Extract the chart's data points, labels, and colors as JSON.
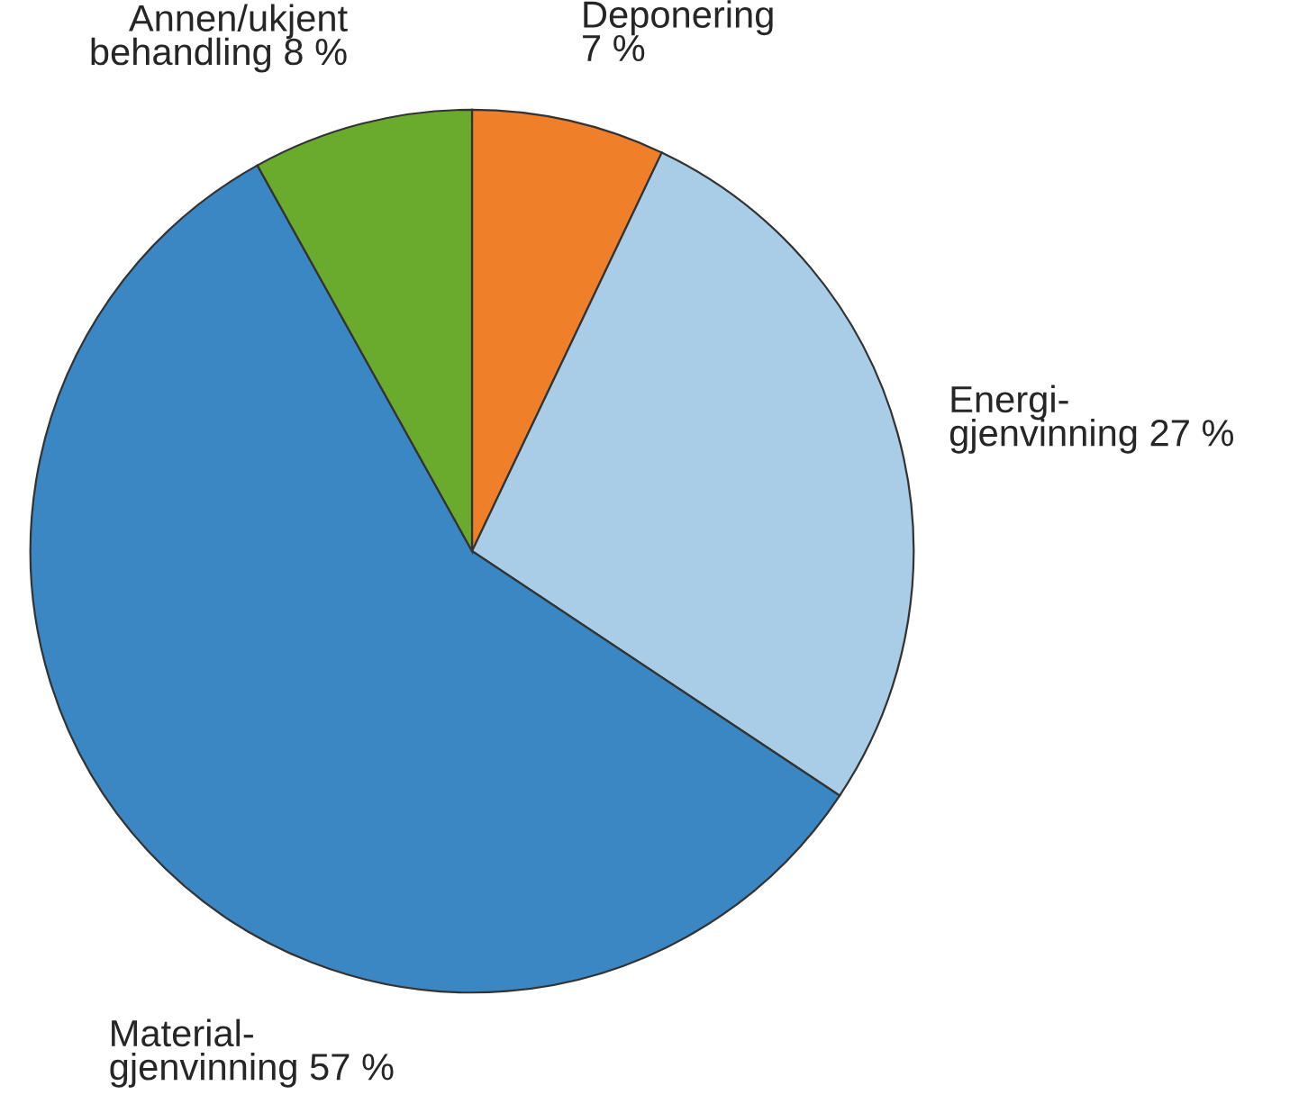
{
  "chart_data": {
    "type": "pie",
    "categories": [
      "Deponering",
      "Energi-\ngjenvinning",
      "Material-\ngjenvinning",
      "Annen/ukjent\nbehandling"
    ],
    "values": [
      7,
      27,
      57,
      8
    ],
    "value_labels": [
      "7 %",
      "27 %",
      "57 %",
      "8 %"
    ],
    "colors": [
      "#f07f2a",
      "#a9cde6",
      "#3a87c4",
      "#6aaa2c"
    ]
  }
}
